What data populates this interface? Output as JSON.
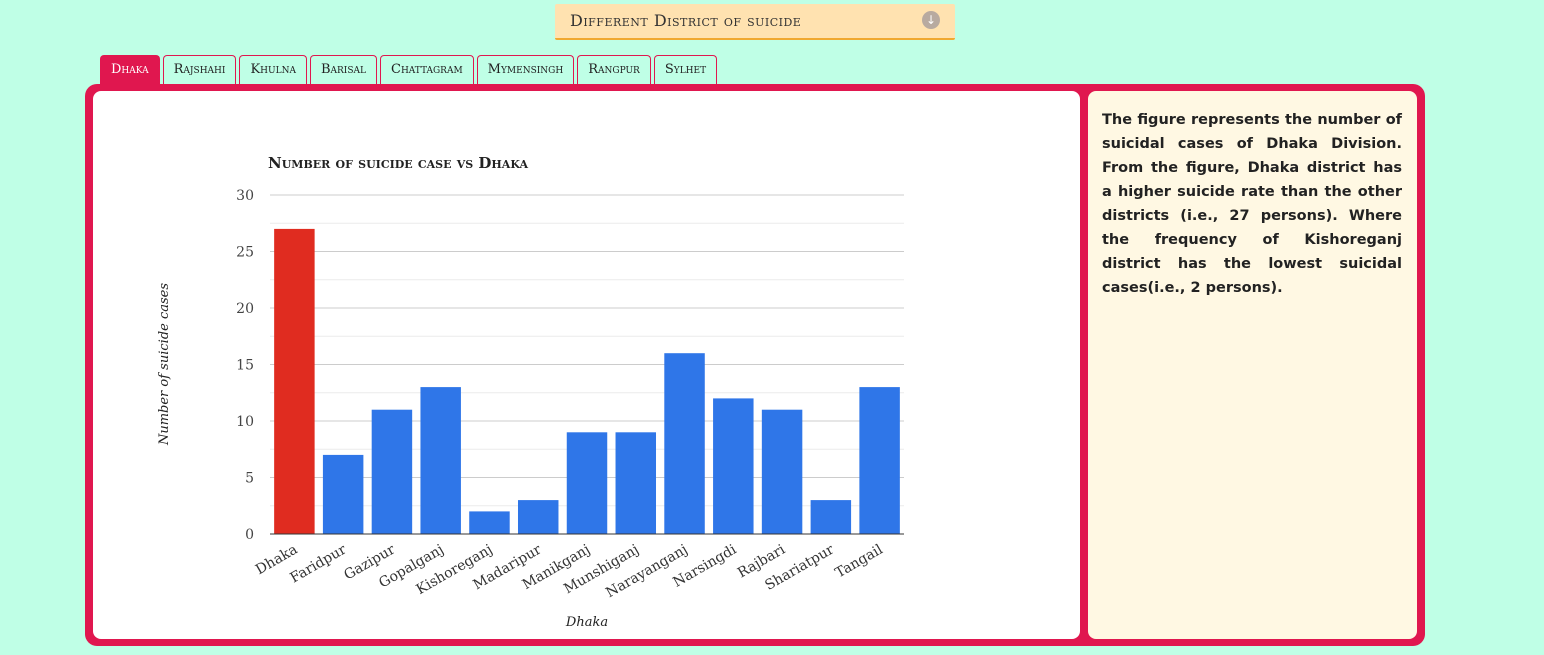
{
  "header": {
    "title": "Different District of suicide",
    "icon": "download-arrow-icon"
  },
  "tabs": [
    {
      "label": "Dhaka",
      "active": true
    },
    {
      "label": "Rajshahi",
      "active": false
    },
    {
      "label": "Khulna",
      "active": false
    },
    {
      "label": "Barisal",
      "active": false
    },
    {
      "label": "Chattagram",
      "active": false
    },
    {
      "label": "Mymensingh",
      "active": false
    },
    {
      "label": "Rangpur",
      "active": false
    },
    {
      "label": "Sylhet",
      "active": false
    }
  ],
  "description": "The figure represents the number of suicidal cases of Dhaka Division. From the figure, Dhaka district has a higher suicide rate than the other districts (i.e., 27 persons). Where the frequency of Kishoreganj district has the lowest suicidal cases(i.e., 2 persons).",
  "colors": {
    "background": "#bfffe6",
    "accent": "#e0174f",
    "highlight_bar": "#e02c20",
    "bar": "#2f76e8",
    "header_bg": "#ffe2b0",
    "description_bg": "#fff8e3"
  },
  "chart_data": {
    "type": "bar",
    "title": "Number of suicide case vs Dhaka",
    "xlabel": "Dhaka",
    "ylabel": "Number of suicide cases",
    "categories": [
      "Dhaka",
      "Faridpur",
      "Gazipur",
      "Gopalganj",
      "Kishoreganj",
      "Madaripur",
      "Manikganj",
      "Munshiganj",
      "Narayanganj",
      "Narsingdi",
      "Rajbari",
      "Shariatpur",
      "Tangail"
    ],
    "values": [
      27,
      7,
      11,
      13,
      2,
      3,
      9,
      9,
      16,
      12,
      11,
      3,
      13
    ],
    "highlight_category": "Dhaka",
    "ylim": [
      0,
      30
    ],
    "yticks": [
      0,
      5,
      10,
      15,
      20,
      25,
      30
    ],
    "grid": true,
    "legend": "none"
  }
}
